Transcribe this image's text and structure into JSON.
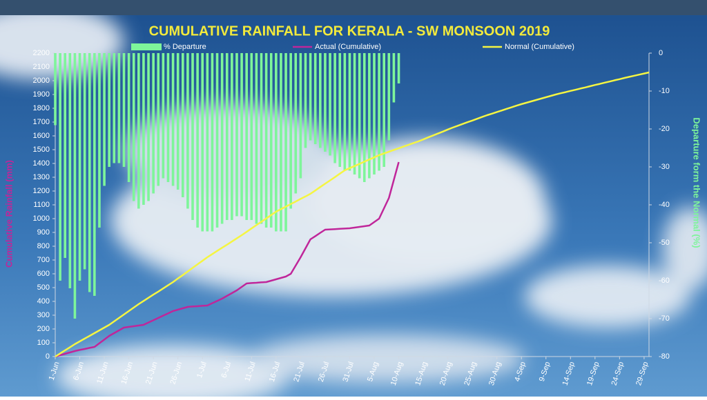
{
  "chart_data": {
    "type": "combo",
    "title": "CUMULATIVE RAINFALL FOR KERALA - SW MONSOON 2019",
    "ylabel": "Cumulative Rainfall (mm)",
    "y2label": "Departure form the Normal (%)",
    "categories": [
      "1-Jun",
      null,
      null,
      null,
      null,
      "6-Jun",
      null,
      null,
      null,
      null,
      "11-Jun",
      null,
      null,
      null,
      null,
      "16-Jun",
      null,
      null,
      null,
      null,
      "21-Jun",
      null,
      null,
      null,
      null,
      "26-Jun",
      null,
      null,
      null,
      null,
      "1-Jul",
      null,
      null,
      null,
      null,
      "6-Jul",
      null,
      null,
      null,
      null,
      "11-Jul",
      null,
      null,
      null,
      null,
      "16-Jul",
      null,
      null,
      null,
      null,
      "21-Jul",
      null,
      null,
      null,
      null,
      "26-Jul",
      null,
      null,
      null,
      null,
      "31-Jul",
      null,
      null,
      null,
      null,
      "5-Aug",
      null,
      null,
      null,
      null,
      "10-Aug",
      null,
      null,
      null,
      null,
      "15-Aug",
      null,
      null,
      null,
      null,
      "20-Aug",
      null,
      null,
      null,
      null,
      "25-Aug",
      null,
      null,
      null,
      null,
      "30-Aug",
      null,
      null,
      null,
      null,
      "4-Sep",
      null,
      null,
      null,
      null,
      "9-Sep",
      null,
      null,
      null,
      null,
      "14-Sep",
      null,
      null,
      null,
      null,
      "19-Sep",
      null,
      null,
      null,
      null,
      "24-Sep",
      null,
      null,
      null,
      null,
      "29-Sep",
      null
    ],
    "series": [
      {
        "name": "% Departure",
        "type": "bar",
        "axis": "y2",
        "color": "#7ef59a",
        "values": [
          -19,
          -60,
          -54,
          -62,
          -70,
          -60,
          -57,
          -63,
          -64,
          -46,
          -35,
          -30,
          -29,
          -29,
          -30,
          -34,
          -39,
          -41,
          -40,
          -39,
          -37,
          -35,
          -33,
          -34,
          -35,
          -36,
          -38,
          -41,
          -44,
          -46,
          -47,
          -47,
          -47,
          -46,
          -45,
          -44,
          -44,
          -43,
          -43,
          -44,
          -44,
          -45,
          -45,
          -46,
          -46,
          -47,
          -47,
          -47,
          -41,
          -37,
          -33,
          -25,
          -23,
          -24,
          -25,
          -26,
          -27,
          -29,
          -30,
          -31,
          -31,
          -32,
          -33,
          -34,
          -33,
          -32,
          -31,
          -30,
          -23,
          -13,
          -8,
          null,
          null,
          null,
          null,
          null,
          null,
          null,
          null,
          null,
          null,
          null,
          null,
          null,
          null,
          null,
          null,
          null,
          null,
          null,
          null,
          null,
          null,
          null,
          null,
          null,
          null,
          null,
          null,
          null,
          null,
          null,
          null,
          null,
          null,
          null,
          null,
          null,
          null,
          null,
          null,
          null,
          null,
          null,
          null,
          null,
          null,
          null,
          null,
          null,
          null,
          null
        ]
      },
      {
        "name": "Actual (Cumulative)",
        "type": "line",
        "color": "#c0269a",
        "values": [
          0,
          10,
          20,
          30,
          40,
          48,
          55,
          63,
          70,
          97,
          123,
          150,
          170,
          190,
          210,
          215,
          220,
          225,
          230,
          247,
          263,
          280,
          297,
          313,
          330,
          340,
          350,
          360,
          363,
          365,
          368,
          370,
          387,
          403,
          420,
          440,
          460,
          480,
          505,
          530,
          533,
          535,
          538,
          540,
          550,
          560,
          570,
          580,
          600,
          660,
          720,
          785,
          850,
          873,
          897,
          920,
          922,
          924,
          926,
          928,
          930,
          935,
          940,
          945,
          950,
          975,
          1000,
          1075,
          1150,
          1280,
          1410,
          null,
          null,
          null,
          null,
          null,
          null,
          null,
          null,
          null,
          null,
          null,
          null,
          null,
          null,
          null,
          null,
          null,
          null,
          null,
          null,
          null,
          null,
          null,
          null,
          null,
          null,
          null,
          null,
          null,
          null,
          null,
          null,
          null,
          null,
          null,
          null,
          null,
          null,
          null,
          null,
          null,
          null,
          null,
          null,
          null,
          null,
          null,
          null,
          null,
          null,
          null
        ]
      },
      {
        "name": "Normal (Cumulative)",
        "type": "line",
        "color": "#f5f542",
        "values": [
          0,
          22,
          45,
          67,
          90,
          110,
          130,
          150,
          170,
          190,
          210,
          230,
          255,
          280,
          305,
          330,
          355,
          380,
          403,
          426,
          449,
          471,
          494,
          517,
          540,
          566,
          591,
          617,
          643,
          669,
          694,
          720,
          743,
          766,
          789,
          811,
          834,
          857,
          880,
          904,
          929,
          953,
          977,
          1001,
          1026,
          1050,
          1069,
          1087,
          1106,
          1124,
          1143,
          1161,
          1180,
          1204,
          1229,
          1253,
          1277,
          1301,
          1326,
          1350,
          1366,
          1381,
          1397,
          1413,
          1429,
          1444,
          1460,
          1473,
          1485,
          1498,
          1510,
          1523,
          1535,
          1548,
          1560,
          1574,
          1589,
          1603,
          1617,
          1631,
          1646,
          1660,
          1673,
          1686,
          1699,
          1711,
          1724,
          1737,
          1750,
          1761,
          1773,
          1784,
          1796,
          1807,
          1819,
          1830,
          1840,
          1850,
          1860,
          1870,
          1880,
          1890,
          1900,
          1909,
          1917,
          1926,
          1934,
          1943,
          1951,
          1960,
          1969,
          1977,
          1986,
          1994,
          2003,
          2011,
          2020,
          2028,
          2036,
          2044,
          2052,
          2060
        ]
      }
    ],
    "ylim": [
      0,
      2200
    ],
    "yticks": [
      0,
      100,
      200,
      300,
      400,
      500,
      600,
      700,
      800,
      900,
      1000,
      1100,
      1200,
      1300,
      1400,
      1500,
      1600,
      1700,
      1800,
      1900,
      2000,
      2100,
      2200
    ],
    "y2lim": [
      -80,
      0
    ],
    "y2ticks": [
      0,
      -10,
      -20,
      -30,
      -40,
      -50,
      -60,
      -70,
      -80
    ]
  }
}
